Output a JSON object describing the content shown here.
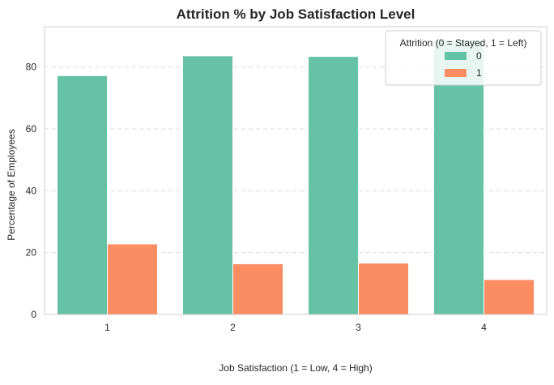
{
  "chart_data": {
    "type": "bar",
    "title": "Attrition % by Job Satisfaction Level",
    "xlabel": "Job Satisfaction (1 = Low, 4 = High)",
    "ylabel": "Percentage of Employees",
    "categories": [
      "1",
      "2",
      "3",
      "4"
    ],
    "series": [
      {
        "name": "0",
        "values": [
          77.2,
          83.6,
          83.4,
          88.7
        ]
      },
      {
        "name": "1",
        "values": [
          22.8,
          16.4,
          16.6,
          11.3
        ]
      }
    ],
    "ylim": [
      0,
      93
    ],
    "yticks": [
      0,
      20,
      40,
      60,
      80
    ],
    "grid": true,
    "legend": {
      "title": "Attrition (0 = Stayed, 1 = Left)",
      "placement": "top-right"
    },
    "colors": {
      "series": [
        "#66c2a5",
        "#fc8d62"
      ],
      "grid": "#dddddd",
      "spine": "#cccccc",
      "background": "#ffffff"
    }
  }
}
